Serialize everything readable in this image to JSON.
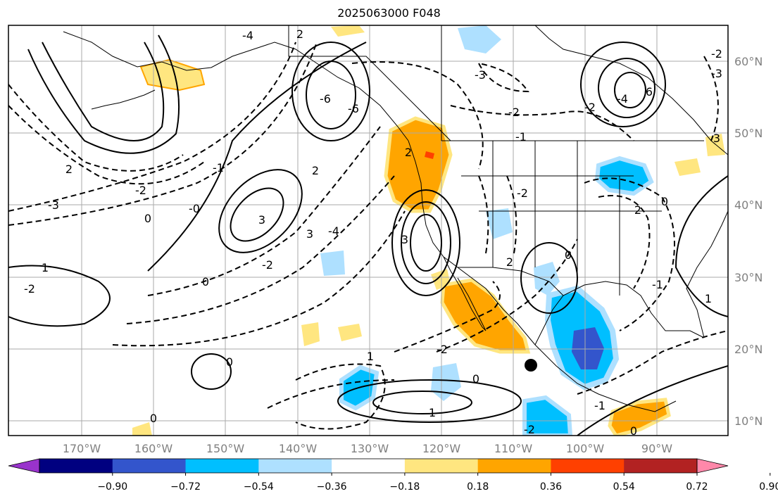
{
  "title": "2025063000 F048",
  "axes": {
    "lon_ticks": [
      "170°W",
      "160°W",
      "150°W",
      "140°W",
      "130°W",
      "120°W",
      "110°W",
      "100°W",
      "90°W"
    ],
    "lat_ticks": [
      "60°N",
      "50°N",
      "40°N",
      "30°N",
      "20°N",
      "10°N"
    ]
  },
  "colorbar": {
    "tick_labels": [
      "−0.90",
      "−0.72",
      "−0.54",
      "−0.36",
      "−0.18",
      "0.18",
      "0.36",
      "0.54",
      "0.72",
      "0.90"
    ],
    "colors": [
      "#9933cc",
      "#000080",
      "#3355cc",
      "#00bfff",
      "#aee0ff",
      "#ffffff",
      "#ffe680",
      "#ffa500",
      "#ff4000",
      "#b22222",
      "#ff88aa"
    ]
  },
  "contour_labels": [
    "-4",
    "2",
    "-3",
    "-6",
    "6",
    "-2",
    "-1",
    "2",
    "-2",
    "-3",
    "0",
    "-0",
    "3",
    "3",
    "-4",
    "2",
    "-2",
    "1",
    "-2",
    "0",
    "3",
    "0",
    "1",
    "-2",
    "0",
    "-1",
    "-2",
    "0",
    "0",
    "1",
    "-2",
    "2",
    "-1",
    "3",
    "-4",
    "-1",
    "-2",
    "-2",
    "-3",
    "1",
    "2",
    "0",
    "2",
    "0",
    "-6"
  ],
  "marker": {
    "label": "storm-center"
  }
}
